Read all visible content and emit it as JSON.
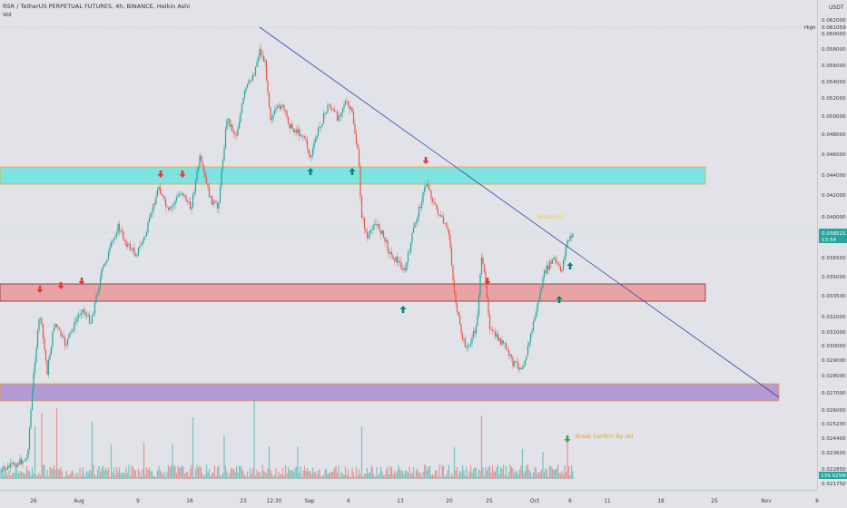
{
  "header": {
    "symbol_line": "RSR / TetherUS PERPETUAL FUTURES, 4h, BINANCE, Heikin Ashi",
    "vol_label": "Vol"
  },
  "currency": "USDT",
  "price_axis": {
    "labels": [
      "0.062000",
      "0.060000",
      "0.058000",
      "0.056000",
      "0.054000",
      "0.052000",
      "0.050000",
      "0.048000",
      "0.046000",
      "0.044000",
      "0.042000",
      "0.040000",
      "0.036500",
      "0.035000",
      "0.033500",
      "0.032000",
      "0.031000",
      "0.030000",
      "0.029000",
      "0.028000",
      "0.027000",
      "0.026000",
      "0.025200",
      "0.024400",
      "0.023600",
      "0.022850"
    ],
    "high_label": "High",
    "high_value": "0.061059",
    "current_price": "0.038521",
    "countdown": "13:54",
    "volume_value": "139.925M",
    "volume_min": "0.021750"
  },
  "time_axis": {
    "labels": [
      "26",
      "Aug",
      "9",
      "16",
      "23",
      "12:30",
      "Sep",
      "6",
      "13",
      "20",
      "25",
      "Oct",
      "6",
      "11",
      "18",
      "25",
      "Nov",
      "8"
    ]
  },
  "annotations": {
    "breakout": "Breakout",
    "break_confirm": "Break Confirm By Vol"
  },
  "colors": {
    "bull": "#26a69a",
    "bear": "#ef5350",
    "zone_cyan": "#7fe3e0",
    "zone_red": "#e8a4a4",
    "zone_purple": "#b59ad6",
    "trendline": "#3f3fa6",
    "arrow_down": "#e53935",
    "arrow_up": "#00897b",
    "breakout_text": "#e8d046",
    "confirm_text": "#f0962e"
  }
}
